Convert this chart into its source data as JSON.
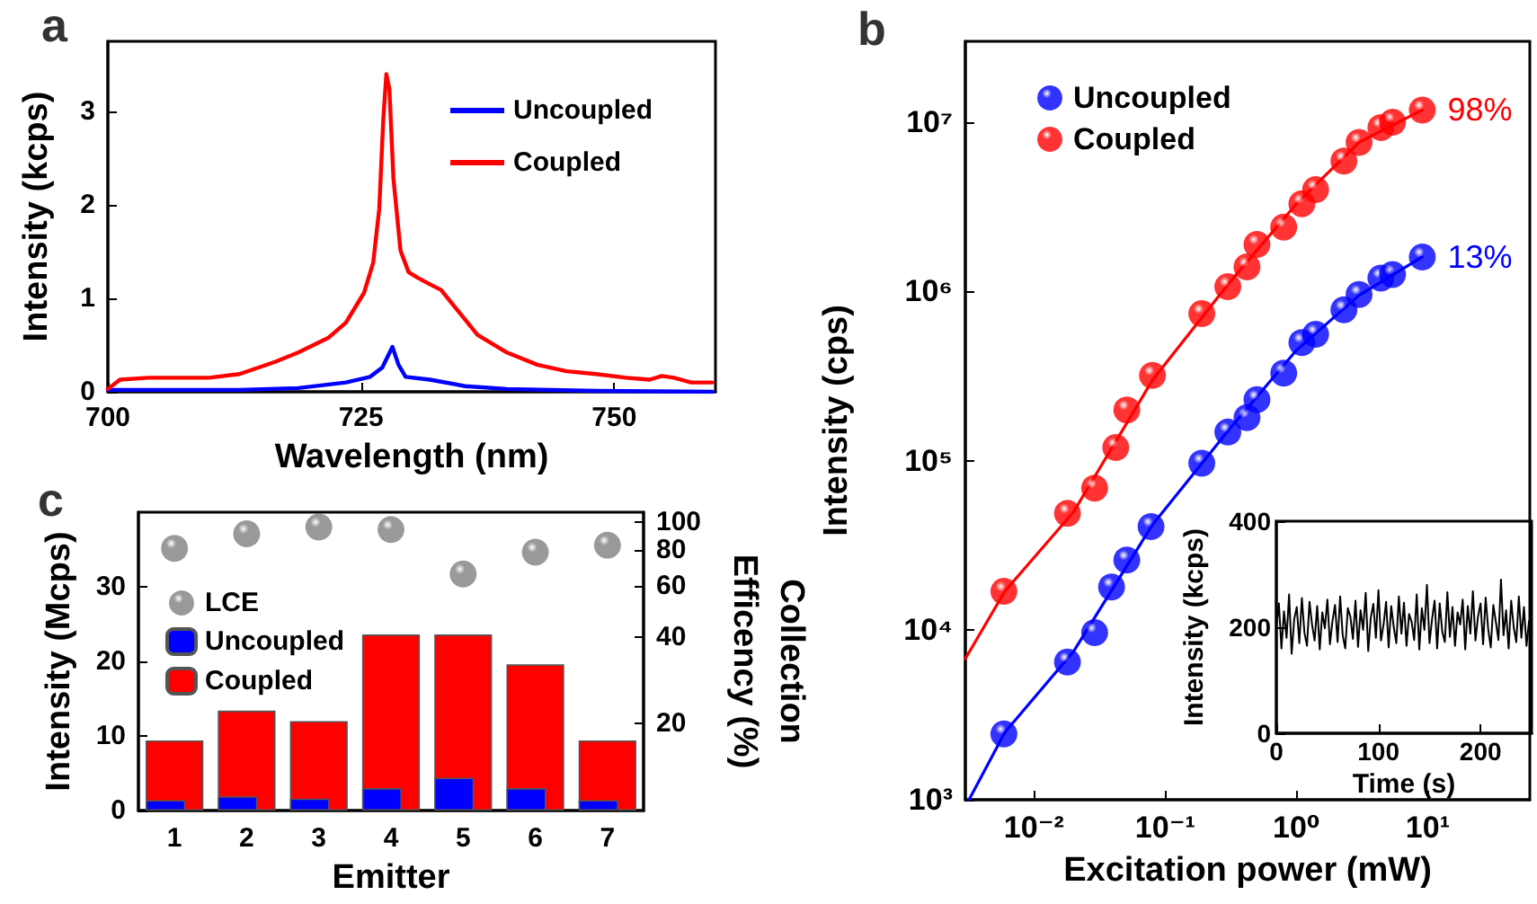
{
  "chart_data": [
    {
      "type": "line",
      "title": "a",
      "xlabel": "Wavelength (nm)",
      "ylabel": "Intensity (kcps)",
      "xlim": [
        700,
        760
      ],
      "xticks": [
        700,
        725,
        750
      ],
      "ylim": [
        0,
        3.75
      ],
      "yticks": [
        0,
        1,
        2,
        3
      ],
      "legend": "top right",
      "series": [
        {
          "name": "Uncoupled",
          "color": "#0000ff",
          "x": [
            700,
            713,
            718.8,
            723.5,
            725.9,
            727.1,
            728.1,
            728.7,
            729.4,
            731.8,
            735.3,
            739.4,
            748.2,
            759.7
          ],
          "values": [
            0.02,
            0.02,
            0.04,
            0.1,
            0.16,
            0.26,
            0.48,
            0.29,
            0.16,
            0.13,
            0.06,
            0.03,
            0.01,
            0.0
          ]
        },
        {
          "name": "Coupled",
          "color": "#ff0000",
          "x": [
            700,
            701.2,
            704,
            710,
            713,
            716.5,
            718.8,
            721.8,
            723.5,
            725.3,
            726.2,
            726.8,
            727.2,
            727.5,
            727.8,
            728.2,
            728.9,
            729.7,
            730.6,
            731.8,
            732.9,
            734.1,
            736.5,
            739.4,
            742.4,
            745.3,
            748.2,
            751.2,
            753.5,
            754.7,
            755.9,
            757.6,
            759.7
          ],
          "values": [
            0.03,
            0.13,
            0.15,
            0.15,
            0.19,
            0.32,
            0.42,
            0.58,
            0.74,
            1.06,
            1.38,
            1.96,
            2.92,
            3.4,
            3.24,
            2.28,
            1.51,
            1.28,
            1.22,
            1.15,
            1.09,
            0.93,
            0.61,
            0.42,
            0.29,
            0.22,
            0.19,
            0.15,
            0.13,
            0.17,
            0.15,
            0.1,
            0.1
          ]
        }
      ]
    },
    {
      "type": "scatter",
      "title": "b",
      "xlabel": "Excitation power (mW)",
      "ylabel": "Intensity (cps)",
      "log": "xy",
      "marker": "circle",
      "legend": "top left",
      "xlim": [
        0.003,
        60
      ],
      "xticks": [
        {
          "value": 0.01,
          "label": "10⁻²"
        },
        {
          "value": 0.1,
          "label": "10⁻¹"
        },
        {
          "value": 1,
          "label": "10⁰"
        },
        {
          "value": 10,
          "label": "10¹"
        }
      ],
      "ylim": [
        1000,
        30000000
      ],
      "yticks": [
        {
          "value": 1000,
          "label": "10³"
        },
        {
          "value": 10000,
          "label": "10⁴"
        },
        {
          "value": 100000,
          "label": "10⁵"
        },
        {
          "value": 1000000,
          "label": "10⁶"
        },
        {
          "value": 10000000,
          "label": "10⁷"
        }
      ],
      "annotations": [
        {
          "text": "13%",
          "x": 9.1,
          "y": 1600000
        },
        {
          "text": "98%",
          "x": 9.1,
          "y": 11800000
        }
      ],
      "series": [
        {
          "name": "Uncoupled",
          "color": "#0000ff",
          "x": [
            0.0059,
            0.018,
            0.029,
            0.039,
            0.051,
            0.078,
            0.19,
            0.3,
            0.42,
            0.5,
            0.8,
            1.1,
            1.4,
            2.3,
            3.0,
            4.4,
            5.4,
            9.1
          ],
          "values": [
            2450,
            6500,
            9700,
            18000,
            26000,
            41000,
            97000,
            148000,
            180000,
            230000,
            330000,
            500000,
            560000,
            780000,
            960000,
            1200000,
            1260000,
            1600000
          ]
        },
        {
          "name": "Coupled",
          "color": "#ff0000",
          "x": [
            0.0059,
            0.018,
            0.029,
            0.042,
            0.051,
            0.08,
            0.19,
            0.3,
            0.42,
            0.5,
            0.8,
            1.1,
            1.4,
            2.3,
            3.0,
            4.4,
            5.4,
            9.1
          ],
          "values": [
            17000,
            49000,
            69000,
            120000,
            200000,
            320000,
            740000,
            1070000,
            1400000,
            1900000,
            2400000,
            3300000,
            4000000,
            5900000,
            7600000,
            9300000,
            10000000,
            11800000
          ]
        },
        {
          "type": "line",
          "marker": "none",
          "color": "#0000ff",
          "x": [
            0.0032,
            0.006,
            0.02,
            0.08,
            0.3,
            1,
            3,
            9.1
          ],
          "values": [
            1000,
            2500,
            7500,
            42000,
            150000,
            450000,
            950000,
            1600000
          ]
        },
        {
          "type": "line",
          "marker": "none",
          "color": "#ff0000",
          "x": [
            0.003,
            0.006,
            0.02,
            0.08,
            0.3,
            1,
            3,
            9.1
          ],
          "values": [
            6800,
            17000,
            50000,
            300000,
            1100000,
            3300000,
            7600000,
            11800000
          ]
        }
      ]
    },
    {
      "type": "line",
      "xlabel": "Time (s)",
      "ylabel": "Intensity (kcps)",
      "xlim": [
        0,
        250
      ],
      "xticks": [
        0,
        100,
        200
      ],
      "ylim": [
        0,
        400
      ],
      "yticks": [
        0,
        200,
        400
      ],
      "series": [
        {
          "color": "#000000",
          "x": [
            0,
            2.5,
            5,
            7.5,
            10,
            12.5,
            15,
            17.5,
            20,
            22.5,
            25,
            27.5,
            30,
            32.5,
            35,
            37.5,
            40,
            42.5,
            45,
            47.5,
            50,
            52.5,
            55,
            57.5,
            60,
            62.5,
            65,
            67.5,
            70,
            72.5,
            75,
            77.5,
            80,
            82.5,
            85,
            87.5,
            90,
            92.5,
            95,
            97.5,
            100,
            102.5,
            105,
            107.5,
            110,
            112.5,
            115,
            117.5,
            120,
            122.5,
            125,
            127.5,
            130,
            132.5,
            135,
            137.5,
            140,
            142.5,
            145,
            147.5,
            150,
            152.5,
            155,
            157.5,
            160,
            162.5,
            165,
            167.5,
            170,
            172.5,
            175,
            177.5,
            180,
            182.5,
            185,
            187.5,
            190,
            192.5,
            195,
            197.5,
            200,
            202.5,
            205,
            207.5,
            210,
            212.5,
            215,
            217.5,
            220,
            222.5,
            225,
            227.5,
            230,
            232.5,
            235,
            237.5,
            240,
            242.5,
            245,
            247.5
          ],
          "values": [
            200,
            245,
            160,
            230,
            180,
            262,
            150,
            215,
            238,
            170,
            255,
            190,
            165,
            248,
            205,
            175,
            240,
            158,
            228,
            198,
            252,
            168,
            212,
            242,
            172,
            258,
            185,
            160,
            236,
            220,
            178,
            250,
            163,
            232,
            195,
            265,
            155,
            218,
            244,
            180,
            270,
            175,
            205,
            248,
            162,
            240,
            200,
            170,
            258,
            188,
            246,
            165,
            225,
            210,
            176,
            262,
            158,
            236,
            195,
            280,
            170,
            215,
            250,
            160,
            245,
            192,
            172,
            266,
            182,
            238,
            165,
            228,
            205,
            252,
            158,
            240,
            188,
            268,
            175,
            220,
            245,
            168,
            256,
            196,
            162,
            242,
            210,
            176,
            290,
            185,
            232,
            160,
            250,
            200,
            172,
            258,
            180,
            238,
            165,
            212
          ]
        }
      ]
    },
    {
      "type": "bar",
      "title": "c",
      "xlabel": "Emitter",
      "ylabel": "Intensity (Mcps)",
      "y2label": "Collection Efficency (%)",
      "log": "y2",
      "legend": "top left",
      "marker": "circle",
      "categories": [
        "1",
        "2",
        "3",
        "4",
        "5",
        "6",
        "7"
      ],
      "ylim": [
        0,
        40
      ],
      "yticks": [
        0,
        10,
        20,
        30
      ],
      "y2lim": [
        10,
        108
      ],
      "y2ticks": [
        20,
        40,
        60,
        80,
        100
      ],
      "series": [
        {
          "name": "LCE",
          "type": "scatter",
          "axis": "y2",
          "color": "#808080",
          "x": [
            "1",
            "2",
            "3",
            "4",
            "5",
            "6",
            "7"
          ],
          "values": [
            81,
            91,
            96,
            94,
            66,
            78.5,
            83
          ]
        },
        {
          "name": "Uncoupled",
          "color": "#0000ff",
          "values": [
            1.4,
            1.9,
            1.6,
            3.0,
            4.4,
            3.0,
            1.4
          ]
        },
        {
          "name": "Coupled",
          "color": "#ff0000",
          "values": [
            9.4,
            13.4,
            12.0,
            23.6,
            23.6,
            19.6,
            9.4
          ]
        }
      ]
    }
  ]
}
